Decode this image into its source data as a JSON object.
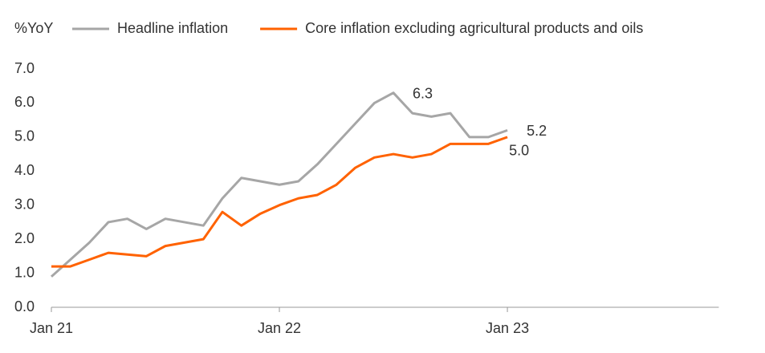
{
  "chart_data": {
    "type": "line",
    "y_label": "%YoY",
    "categories": [
      "Jan 21",
      null,
      null,
      null,
      null,
      null,
      null,
      null,
      null,
      null,
      null,
      null,
      "Jan 22",
      null,
      null,
      null,
      null,
      null,
      null,
      null,
      null,
      null,
      null,
      null,
      "Jan 23",
      null,
      null,
      null,
      null,
      null,
      null,
      null,
      null,
      null,
      null,
      null
    ],
    "series": [
      {
        "name": "Headline inflation",
        "color": "#a6a6a6",
        "values": [
          0.9,
          1.4,
          1.9,
          2.5,
          2.6,
          2.3,
          2.6,
          2.5,
          2.4,
          3.2,
          3.8,
          3.7,
          3.6,
          3.7,
          4.2,
          4.8,
          5.4,
          6.0,
          6.3,
          5.7,
          5.6,
          5.7,
          5.0,
          5.0,
          5.2,
          null,
          null,
          null,
          null,
          null,
          null,
          null,
          null,
          null,
          null,
          null
        ],
        "value_labels": [
          null,
          null,
          null,
          null,
          null,
          null,
          null,
          null,
          null,
          null,
          null,
          null,
          null,
          null,
          null,
          null,
          null,
          null,
          "6.3",
          null,
          null,
          null,
          null,
          null,
          "5.2",
          null,
          null,
          null,
          null,
          null,
          null,
          null,
          null,
          null,
          null,
          null
        ]
      },
      {
        "name": "Core inflation excluding agricultural products and oils",
        "color": "#ff6200",
        "values": [
          1.2,
          1.2,
          1.4,
          1.6,
          1.55,
          1.5,
          1.8,
          1.9,
          2.0,
          2.8,
          2.4,
          2.75,
          3.0,
          3.2,
          3.3,
          3.6,
          4.1,
          4.4,
          4.5,
          4.4,
          4.5,
          4.8,
          4.8,
          4.8,
          5.0,
          null,
          null,
          null,
          null,
          null,
          null,
          null,
          null,
          null,
          null,
          null
        ],
        "value_labels": [
          null,
          null,
          null,
          null,
          null,
          null,
          null,
          null,
          null,
          null,
          null,
          null,
          null,
          null,
          null,
          null,
          null,
          null,
          null,
          null,
          null,
          null,
          null,
          null,
          "5.0",
          null,
          null,
          null,
          null,
          null,
          null,
          null,
          null,
          null,
          null,
          null
        ]
      }
    ],
    "ylim": [
      0,
      7
    ],
    "yticks": [
      {
        "value": 0,
        "label": "0.0"
      },
      {
        "value": 1,
        "label": "1.0"
      },
      {
        "value": 2,
        "label": "2.0"
      },
      {
        "value": 3,
        "label": "3.0"
      },
      {
        "value": 4,
        "label": "4.0"
      },
      {
        "value": 5,
        "label": "5.0"
      },
      {
        "value": 6,
        "label": "6.0"
      },
      {
        "value": 7,
        "label": "7.0"
      }
    ],
    "grid": false
  }
}
